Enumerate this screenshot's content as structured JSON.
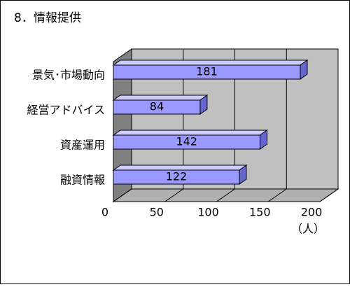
{
  "chart_data": {
    "type": "bar3d",
    "title": "8．情報提供",
    "categories": [
      "景気･市場動向",
      "経営アドバイス",
      "資産運用",
      "融資情報"
    ],
    "values": [
      181,
      84,
      142,
      122
    ],
    "color": "#9999ff",
    "xlim": [
      0,
      200
    ],
    "xticks": [
      0,
      50,
      100,
      150,
      200
    ],
    "x_label": "（人）",
    "grid": true
  }
}
